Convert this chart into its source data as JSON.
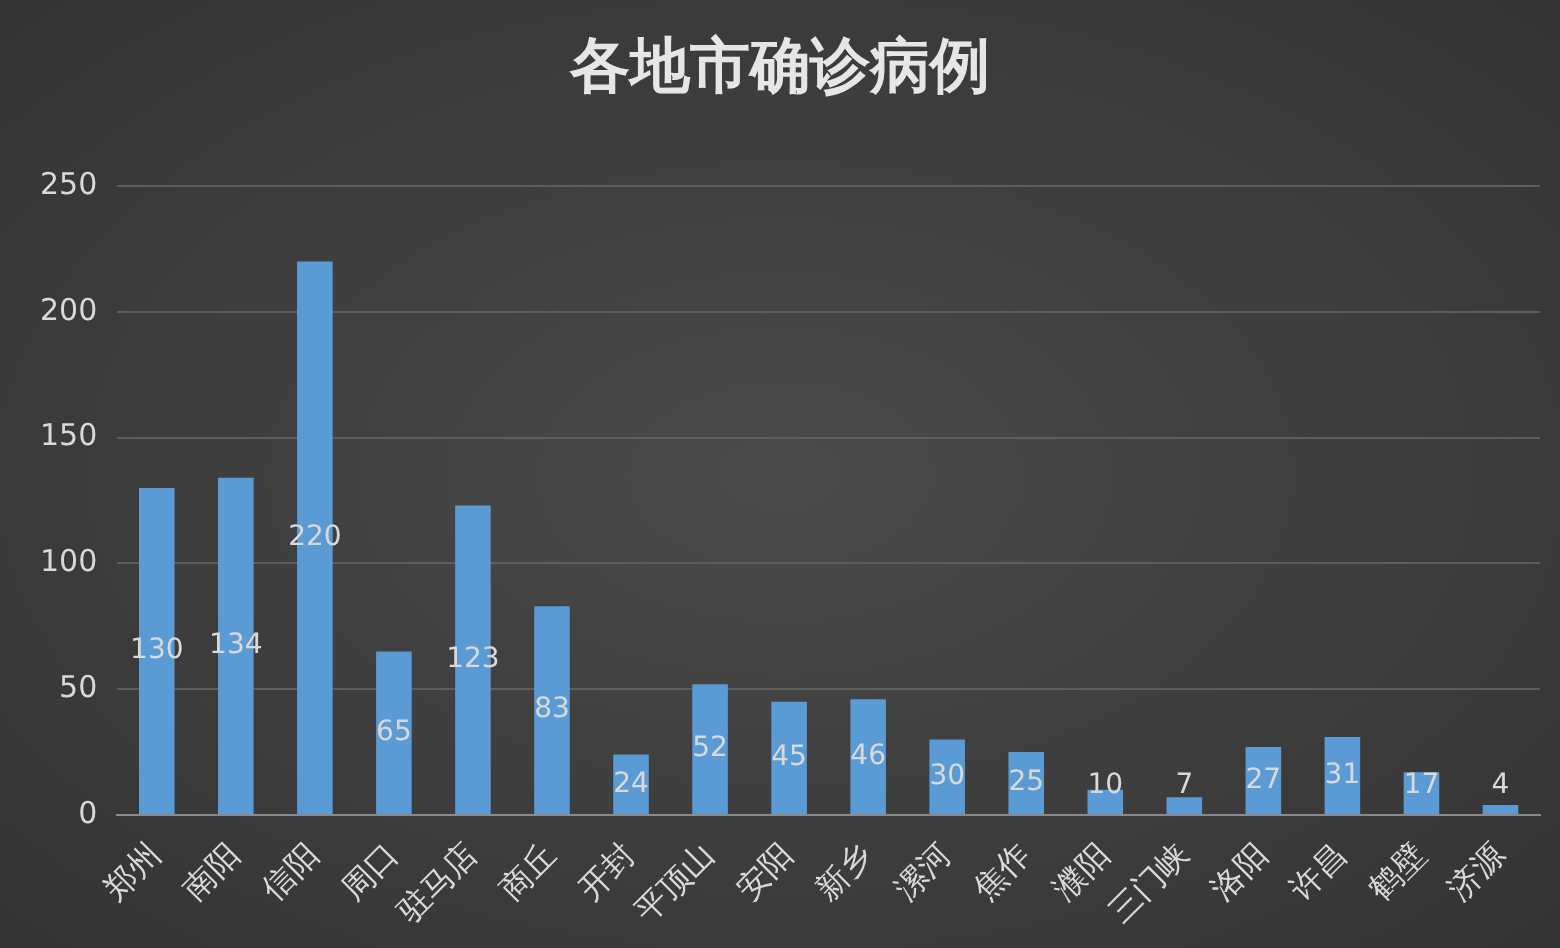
{
  "chart_data": {
    "type": "bar",
    "title": "各地市确诊病例",
    "categories": [
      "郑州",
      "南阳",
      "信阳",
      "周口",
      "驻马店",
      "商丘",
      "开封",
      "平顶山",
      "安阳",
      "新乡",
      "漯河",
      "焦作",
      "濮阳",
      "三门峡",
      "洛阳",
      "许昌",
      "鹤壁",
      "济源"
    ],
    "values": [
      130,
      134,
      220,
      65,
      123,
      83,
      24,
      52,
      45,
      46,
      30,
      25,
      10,
      7,
      27,
      31,
      17,
      4
    ],
    "color": "#5b9bd5",
    "ylim": [
      0,
      250
    ],
    "yticks": [
      0,
      50,
      100,
      150,
      200,
      250
    ],
    "grid": "y",
    "data_labels": true,
    "legend": false
  }
}
